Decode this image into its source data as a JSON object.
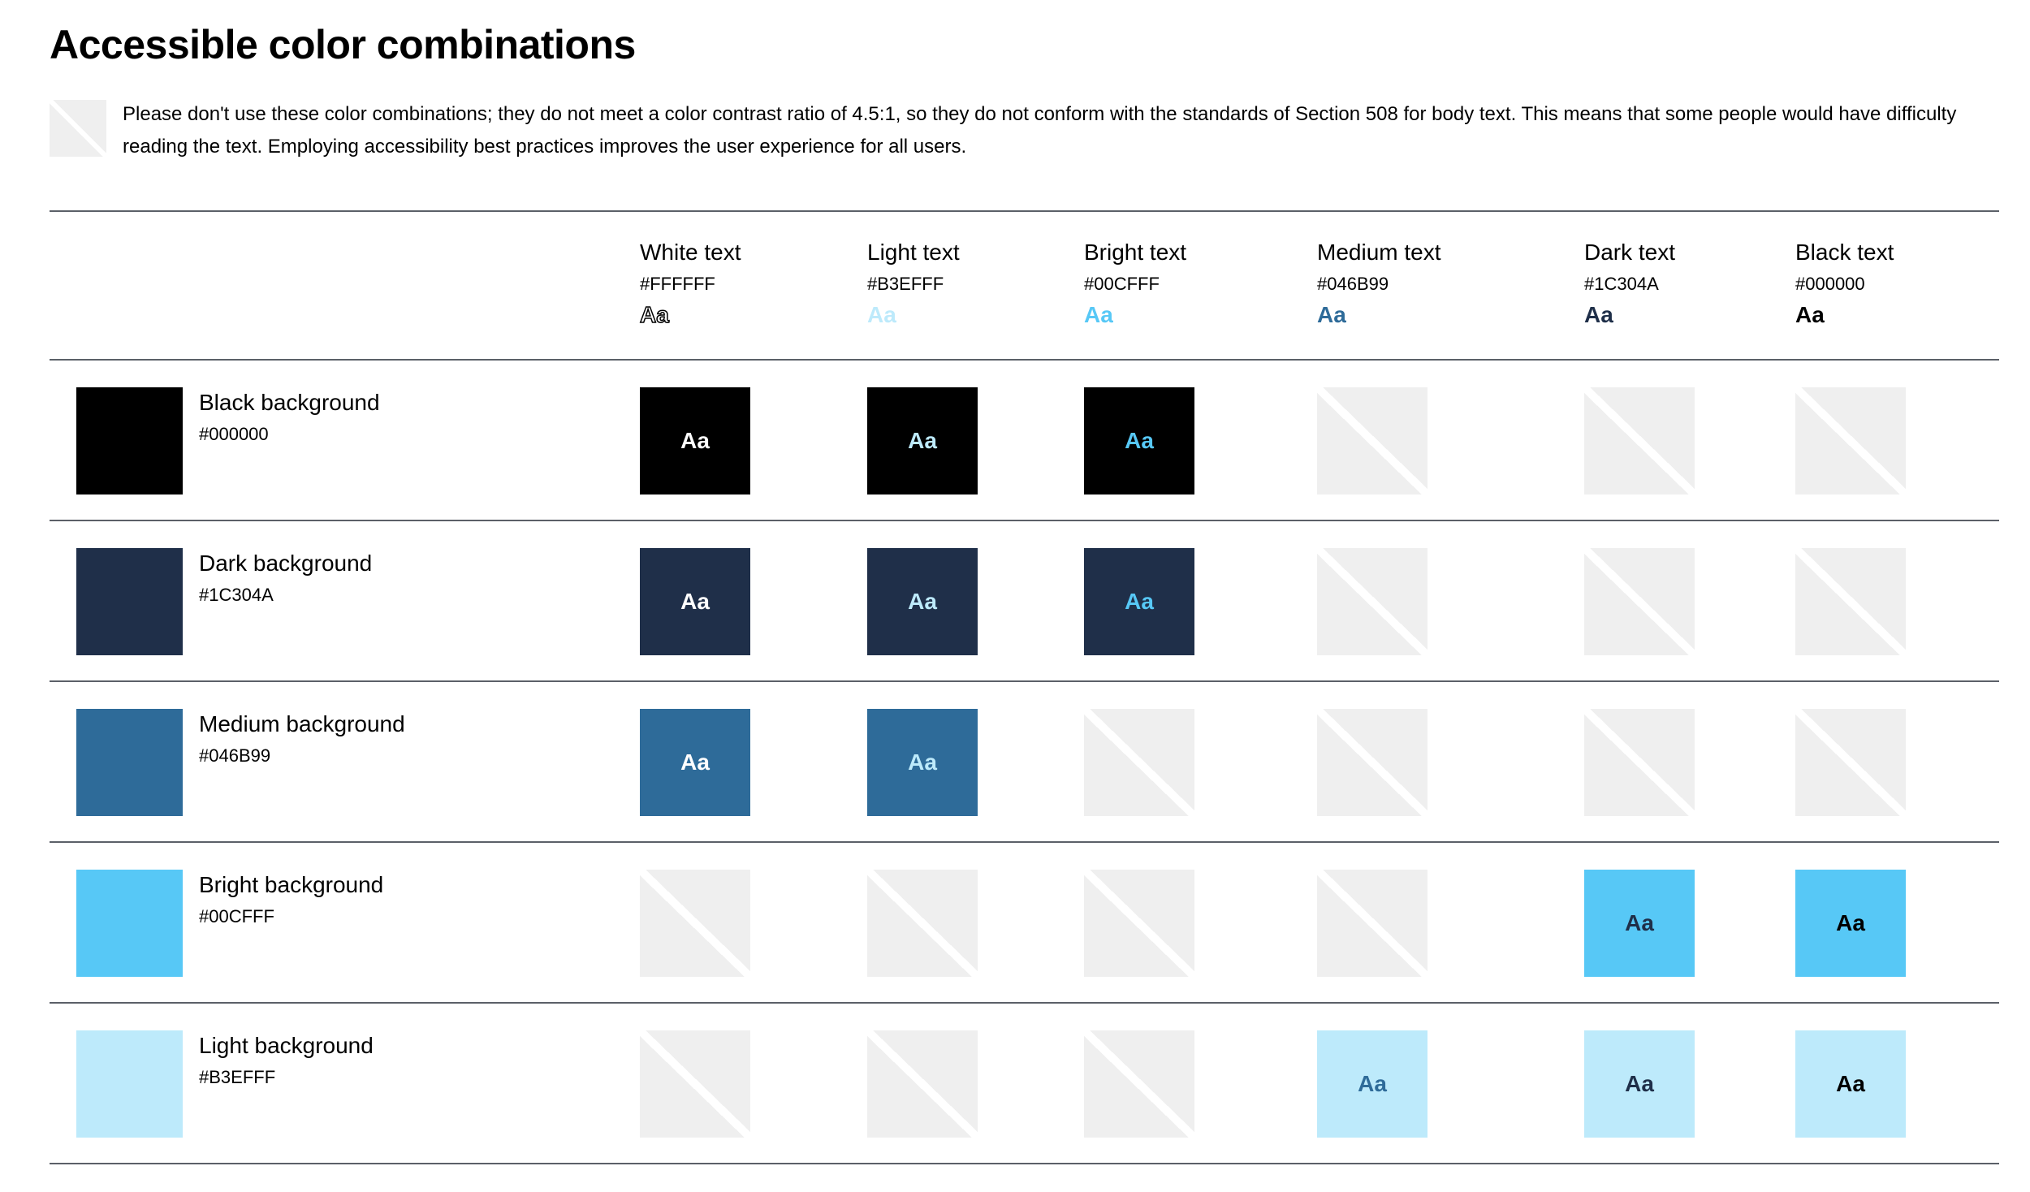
{
  "page": {
    "title": "Accessible color combinations",
    "note": "Please don't use these color combinations; they do not meet a color contrast ratio of 4.5:1, so they do not conform with the standards of Section 508 for body text. This means that some people would have difficulty reading the text. Employing accessibility best practices improves the user experience for all users.",
    "sample": "Aa"
  },
  "colors": {
    "white": "#FFFFFF",
    "light": "#BDEAFB",
    "bright": "#57C8F6",
    "medium": "#2E6B99",
    "dark": "#1F2F49",
    "black": "#000000",
    "prohibited": "#EFEFEF",
    "rule": "#5B6068"
  },
  "columns": [
    {
      "label": "White text",
      "hex": "#FFFFFF"
    },
    {
      "label": "Light text",
      "hex": "#B3EFFF"
    },
    {
      "label": "Bright text",
      "hex": "#00CFFF"
    },
    {
      "label": "Medium text",
      "hex": "#046B99"
    },
    {
      "label": "Dark text",
      "hex": "#1C304A"
    },
    {
      "label": "Black text",
      "hex": "#000000"
    }
  ],
  "rows": [
    {
      "label": "Black background",
      "hex": "#000000",
      "allowed": [
        "white",
        "light",
        "bright"
      ]
    },
    {
      "label": "Dark background",
      "hex": "#1C304A",
      "allowed": [
        "white",
        "light",
        "bright"
      ]
    },
    {
      "label": "Medium background",
      "hex": "#046B99",
      "allowed": [
        "white",
        "light"
      ]
    },
    {
      "label": "Bright background",
      "hex": "#00CFFF",
      "allowed": [
        "dark",
        "black"
      ]
    },
    {
      "label": "Light background",
      "hex": "#B3EFFF",
      "allowed": [
        "medium",
        "dark",
        "black"
      ]
    }
  ]
}
